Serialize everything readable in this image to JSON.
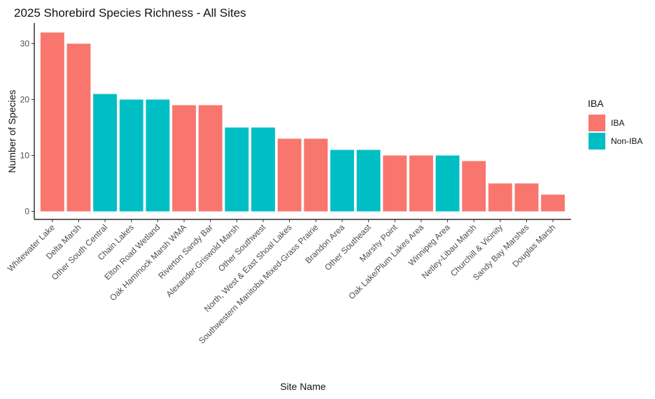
{
  "chart_data": {
    "type": "bar",
    "title": "2025 Shorebird Species Richness - All Sites",
    "xlabel": "Site Name",
    "ylabel": "Number of Species",
    "ylim": [
      0,
      32
    ],
    "yticks": [
      0,
      10,
      20,
      30
    ],
    "grid": false,
    "legend_position": "right",
    "legend": {
      "title": "IBA",
      "entries": [
        {
          "label": "IBA",
          "color": "#F8766D"
        },
        {
          "label": "Non-IBA",
          "color": "#00BFC4"
        }
      ]
    },
    "categories": [
      "Whitewater Lake",
      "Delta Marsh",
      "Other South Central",
      "Chain Lakes",
      "Elton Road Wetland",
      "Oak Hammock Marsh WMA",
      "Riverton Sandy Bar",
      "Alexander-Griswold Marsh",
      "Other Southwest",
      "North, West & East Shoal Lakes",
      "Southwestern Manitoba Mixed-Grass Prairie",
      "Brandon Area",
      "Other Southeast",
      "Marshy Point",
      "Oak Lake/Plum Lakes Area",
      "Winnipeg Area",
      "Netley-Libau Marsh",
      "Churchill & Vicinity",
      "Sandy Bay Marshes",
      "Douglas Marsh"
    ],
    "values": [
      32,
      30,
      21,
      20,
      20,
      19,
      19,
      15,
      15,
      13,
      13,
      11,
      11,
      10,
      10,
      10,
      9,
      5,
      5,
      3
    ],
    "groups": [
      "IBA",
      "IBA",
      "Non-IBA",
      "Non-IBA",
      "Non-IBA",
      "IBA",
      "IBA",
      "Non-IBA",
      "Non-IBA",
      "IBA",
      "IBA",
      "Non-IBA",
      "Non-IBA",
      "IBA",
      "IBA",
      "Non-IBA",
      "IBA",
      "IBA",
      "IBA",
      "IBA"
    ]
  }
}
